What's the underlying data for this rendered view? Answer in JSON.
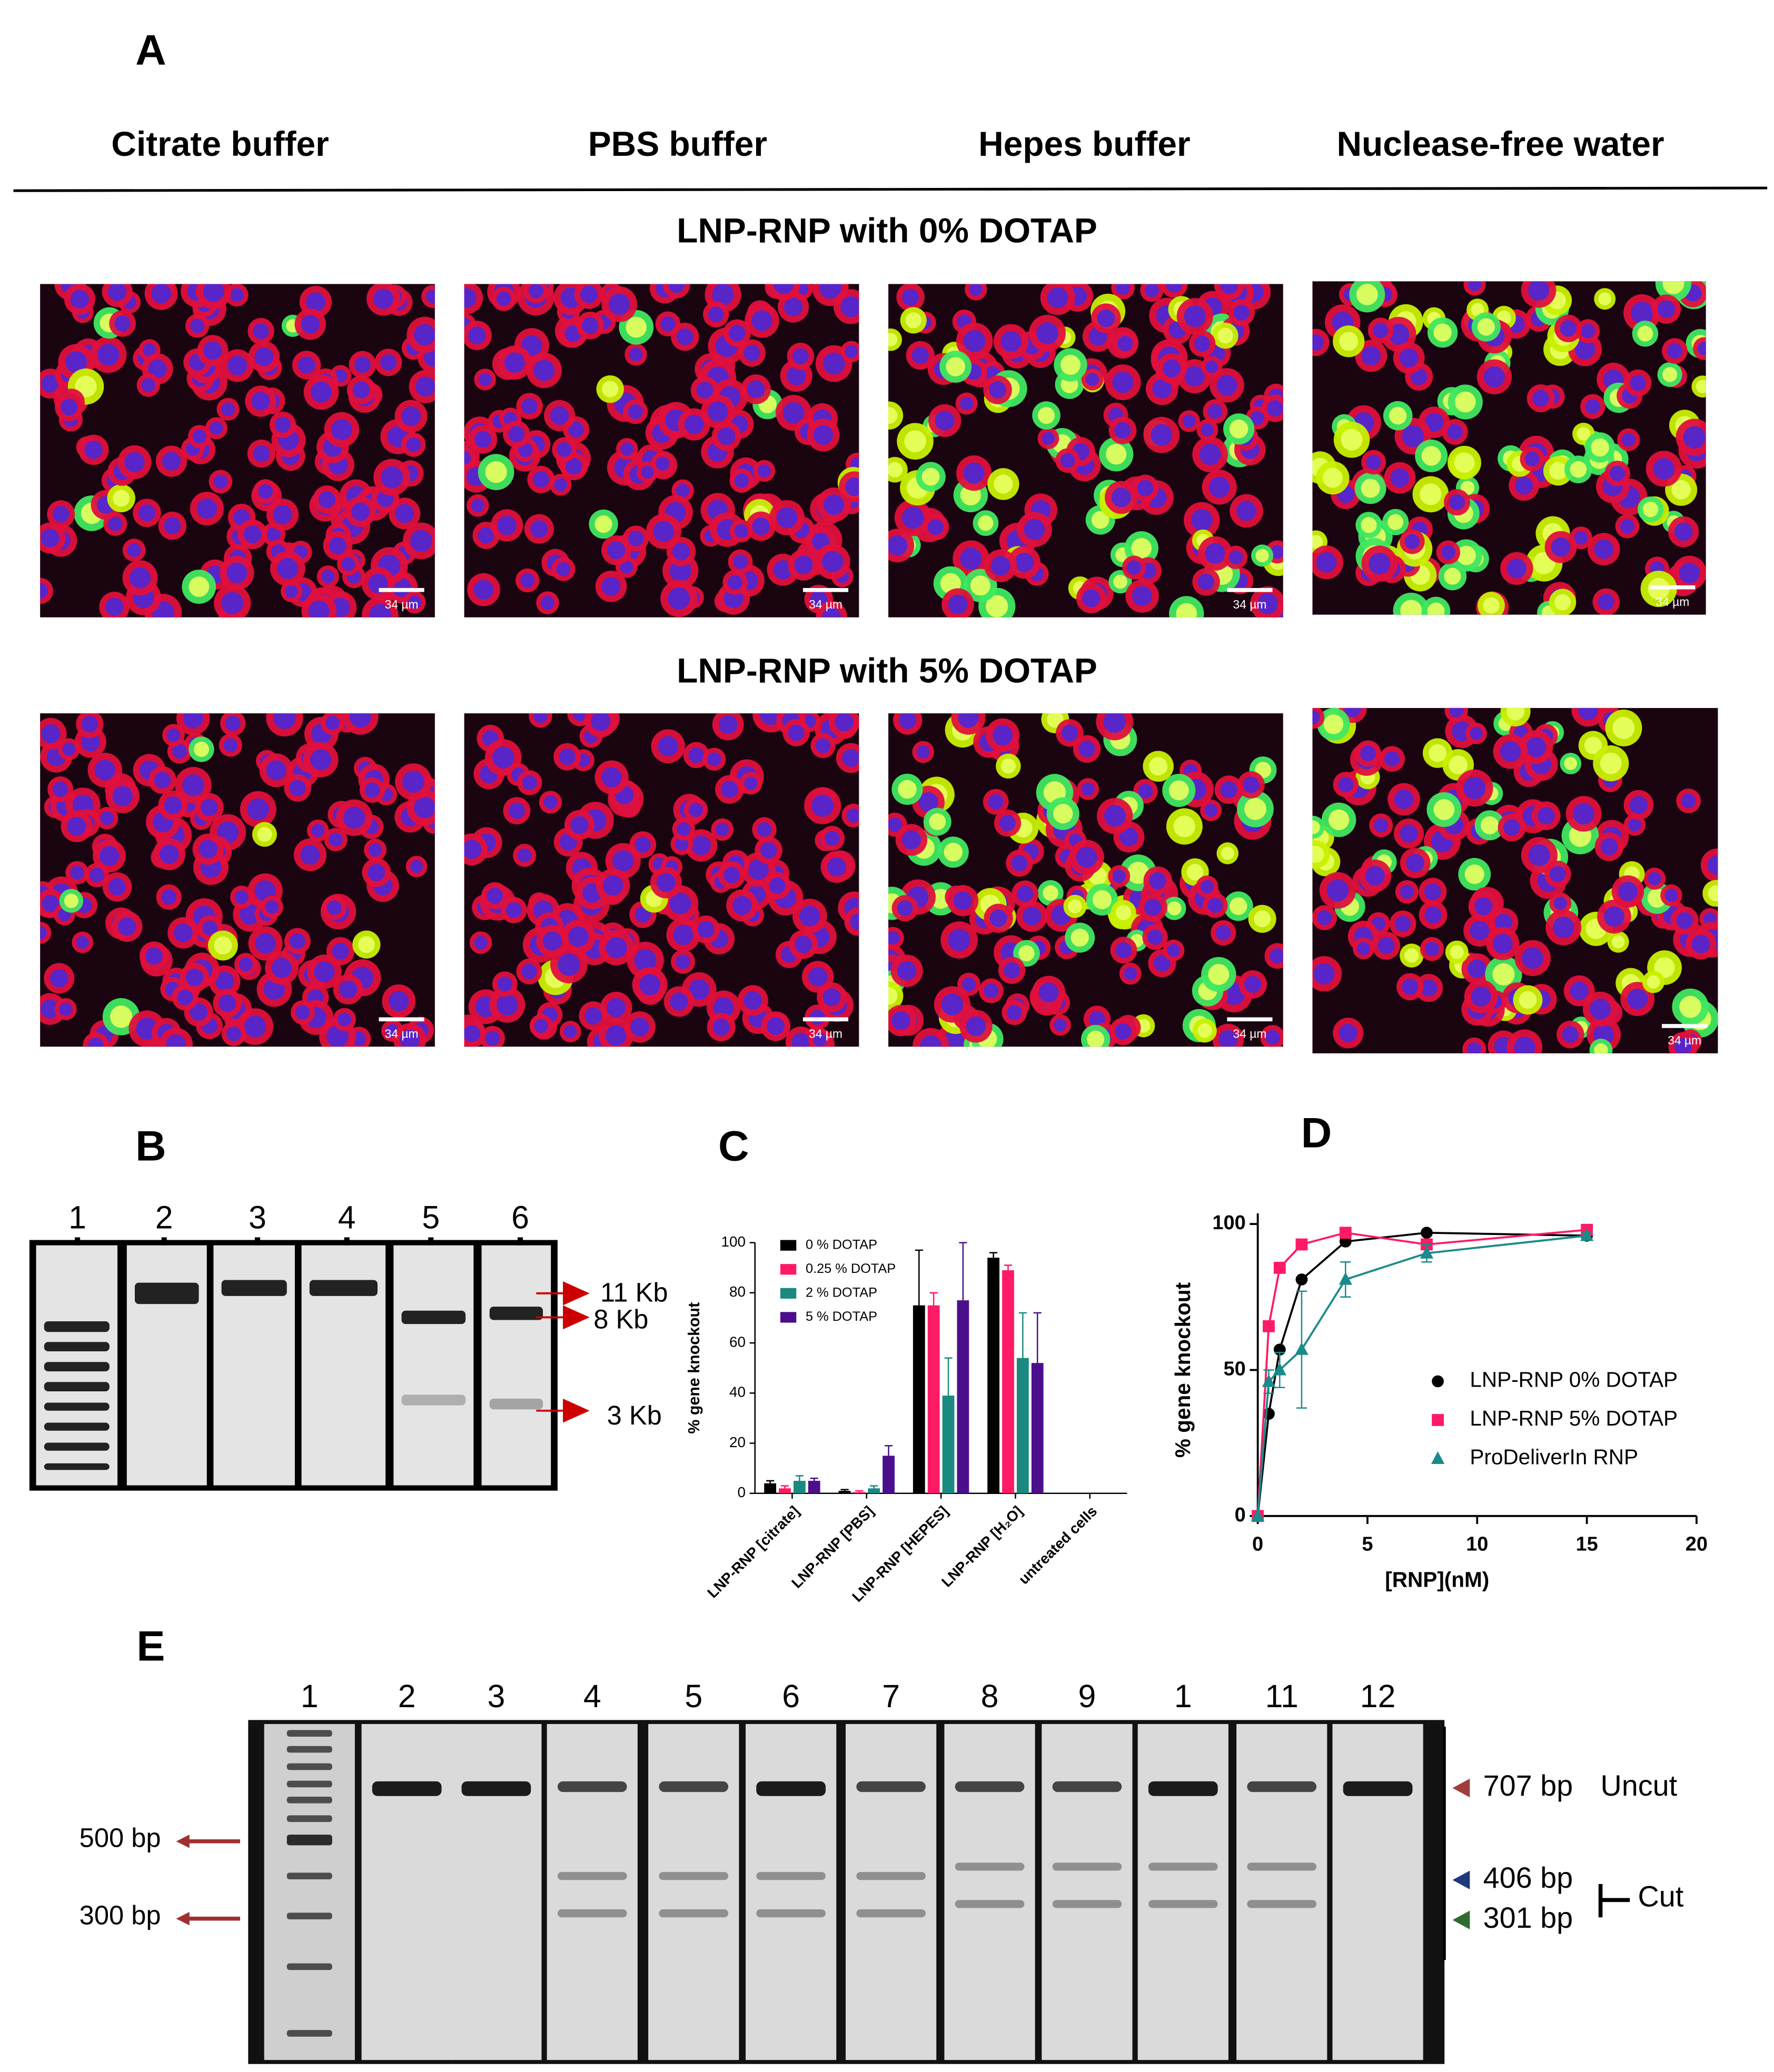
{
  "figure": {
    "panel_labels": [
      "A",
      "B",
      "C",
      "D",
      "E"
    ]
  },
  "panel_a": {
    "columns": [
      "Citrate buffer",
      "PBS buffer",
      "Hepes buffer",
      "Nuclease-free water"
    ],
    "rows": [
      "LNP-RNP with 0% DOTAP",
      "LNP-RNP with 5% DOTAP"
    ],
    "scale_bar": "34 µm"
  },
  "panel_b": {
    "lanes": [
      "1",
      "2",
      "3",
      "4",
      "5",
      "6"
    ],
    "bands": [
      "11 Kb",
      "8 Kb",
      "3 Kb"
    ]
  },
  "panel_e": {
    "lanes": [
      "1",
      "2",
      "3",
      "4",
      "5",
      "6",
      "7",
      "8",
      "9",
      "1",
      "11",
      "12"
    ],
    "ladder": [
      "500 bp",
      "300 bp"
    ],
    "bands": [
      "707 bp",
      "406 bp",
      "301 bp"
    ],
    "uncut": "Uncut",
    "cut": "Cut"
  },
  "chart_data": [
    {
      "type": "bar",
      "y_label": "% gene knockout",
      "categories": [
        "LNP-RNP [citrate]",
        "LNP-RNP [PBS]",
        "LNP-RNP [HEPES]",
        "LNP-RNP [H₂O]",
        "untreated cells"
      ],
      "series": [
        {
          "name": "0 % DOTAP",
          "color": "#000000",
          "values": [
            4,
            1,
            75,
            94,
            null
          ],
          "errors": [
            1,
            0.5,
            22,
            2,
            null
          ]
        },
        {
          "name": "0.25 % DOTAP",
          "color": "#ff1a66",
          "values": [
            2,
            0.5,
            75,
            89,
            null
          ],
          "errors": [
            1,
            0.5,
            5,
            2,
            null
          ]
        },
        {
          "name": "2 % DOTAP",
          "color": "#1a8a80",
          "values": [
            5,
            2,
            39,
            54,
            null
          ],
          "errors": [
            2,
            1,
            15,
            18,
            null
          ]
        },
        {
          "name": "5 % DOTAP",
          "color": "#4b0f8c",
          "values": [
            5,
            15,
            77,
            52,
            null
          ],
          "errors": [
            1,
            4,
            23,
            20,
            null
          ]
        }
      ],
      "ylim": [
        0,
        100
      ],
      "yticks": [
        0,
        20,
        40,
        60,
        80,
        100
      ]
    },
    {
      "type": "scatter",
      "x_label": "[RNP](nM)",
      "y_label": "% gene knockout",
      "series": [
        {
          "name": "LNP-RNP 0% DOTAP",
          "color": "#000000",
          "marker": "circle",
          "x": [
            0,
            0.5,
            1,
            2,
            4,
            7.7,
            15
          ],
          "values": [
            0,
            35,
            57,
            81,
            94,
            97,
            96
          ]
        },
        {
          "name": "LNP-RNP 5% DOTAP",
          "color": "#ff1a66",
          "marker": "square",
          "x": [
            0,
            0.5,
            1,
            2,
            4,
            7.7,
            15
          ],
          "values": [
            0,
            65,
            85,
            93,
            97,
            93,
            98
          ]
        },
        {
          "name": "ProDeliverIn RNP",
          "color": "#1a8a8a",
          "marker": "triangle",
          "x": [
            0,
            0.5,
            1,
            2,
            4,
            7.7,
            15
          ],
          "values": [
            0,
            46,
            50,
            57,
            81,
            90,
            96
          ],
          "errors": [
            0,
            4,
            6,
            20,
            6,
            3,
            1
          ]
        }
      ],
      "xlim": [
        0,
        20
      ],
      "xticks": [
        0,
        5,
        10,
        15,
        20
      ],
      "ylim": [
        0,
        100
      ],
      "yticks": [
        0,
        50,
        100
      ]
    }
  ]
}
